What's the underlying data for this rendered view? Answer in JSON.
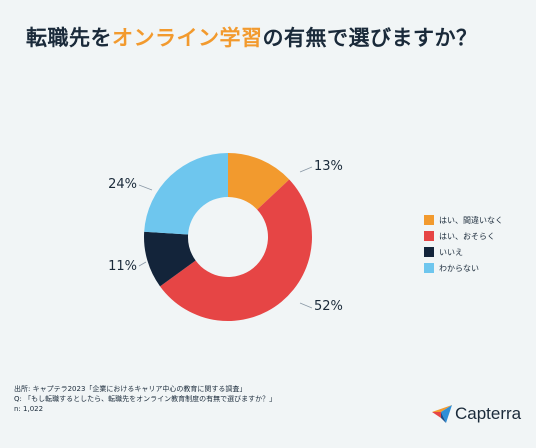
{
  "title": {
    "before": "転職先を",
    "accent": "オンライン学習",
    "after": "の有無で選びますか？"
  },
  "colors": {
    "title_accent": "#f29a2e",
    "text": "#1a2a3a",
    "background": "#f1f5f6"
  },
  "chart_data": {
    "type": "pie",
    "style": "donut",
    "legend_position": "right",
    "slices": [
      {
        "label": "はい、間違いなく",
        "value": 13,
        "display": "13%",
        "color": "#f29a2e"
      },
      {
        "label": "はい、おそらく",
        "value": 52,
        "display": "52%",
        "color": "#e64545"
      },
      {
        "label": "いいえ",
        "value": 11,
        "display": "11%",
        "color": "#13243a"
      },
      {
        "label": "わからない",
        "value": 24,
        "display": "24%",
        "color": "#6ec6ee"
      }
    ]
  },
  "source": {
    "line1": "出所: キャプテラ2023「企業におけるキャリア中心の教育に関する調査」",
    "line2": "Q: 「もし転職するとしたら、転職先をオンライン教育制度の有無で選びますか？」",
    "line3": "n: 1,022"
  },
  "logo": {
    "name": "Capterra",
    "icon": "capterra-logo-icon"
  }
}
